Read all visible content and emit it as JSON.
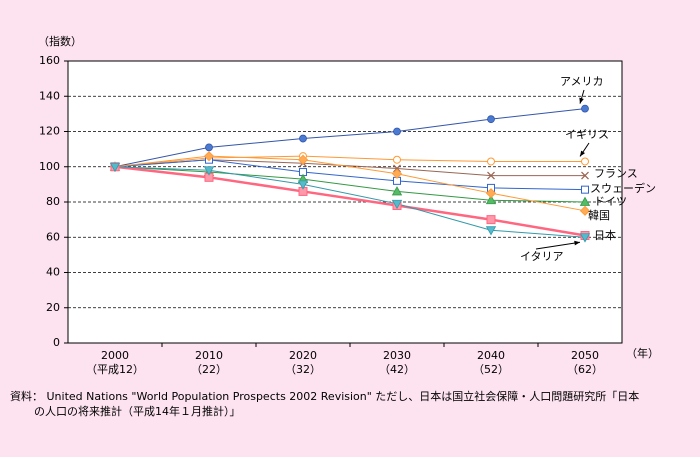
{
  "chart_data": {
    "type": "line",
    "y_label": "（指数）",
    "x_label": "（年）",
    "categories": [
      "2000",
      "2010",
      "2020",
      "2030",
      "2040",
      "2050"
    ],
    "category_sublabels": [
      "（平成12）",
      "（22）",
      "（32）",
      "（42）",
      "（52）",
      "（62）"
    ],
    "ylim": [
      0,
      160
    ],
    "yticks": [
      0,
      20,
      40,
      60,
      80,
      100,
      120,
      140,
      160
    ],
    "grid": true,
    "series": [
      {
        "name": "アメリカ",
        "color": "#3355aa",
        "marker": "circle",
        "marker_color": "#4a7bd0",
        "values": [
          100,
          111,
          116,
          120,
          127,
          133
        ]
      },
      {
        "name": "イギリス",
        "color": "#ff9933",
        "marker": "circle-open",
        "values": [
          100,
          105,
          106,
          104,
          103,
          103
        ]
      },
      {
        "name": "フランス",
        "color": "#996655",
        "marker": "x",
        "values": [
          100,
          104,
          102,
          99,
          95,
          95
        ]
      },
      {
        "name": "スウェーデン",
        "color": "#3366cc",
        "marker": "square-open",
        "values": [
          100,
          104,
          97,
          92,
          88,
          87
        ]
      },
      {
        "name": "ドイツ",
        "color": "#339944",
        "marker": "triangle",
        "marker_color": "#55bb66",
        "values": [
          100,
          97,
          93,
          86,
          81,
          80
        ]
      },
      {
        "name": "韓国",
        "color": "#ff9933",
        "marker": "diamond",
        "marker_color": "#ffaa55",
        "values": [
          100,
          106,
          104,
          96,
          85,
          75
        ]
      },
      {
        "name": "日本",
        "color": "#ff6680",
        "marker": "square",
        "marker_color": "#ff99aa",
        "width": 2.5,
        "values": [
          100,
          94,
          86,
          78,
          70,
          61
        ]
      },
      {
        "name": "イタリア",
        "color": "#3399aa",
        "marker": "triangle-down",
        "marker_color": "#55bbcc",
        "values": [
          100,
          98,
          90,
          79,
          64,
          60
        ]
      }
    ],
    "source": [
      "資料： United Nations \"World Population Prospects 2002 Revision\" ただし、日本は国立社会保障・人口問題研究所「日本",
      "の人口の将来推計（平成14年１月推計）」"
    ]
  }
}
